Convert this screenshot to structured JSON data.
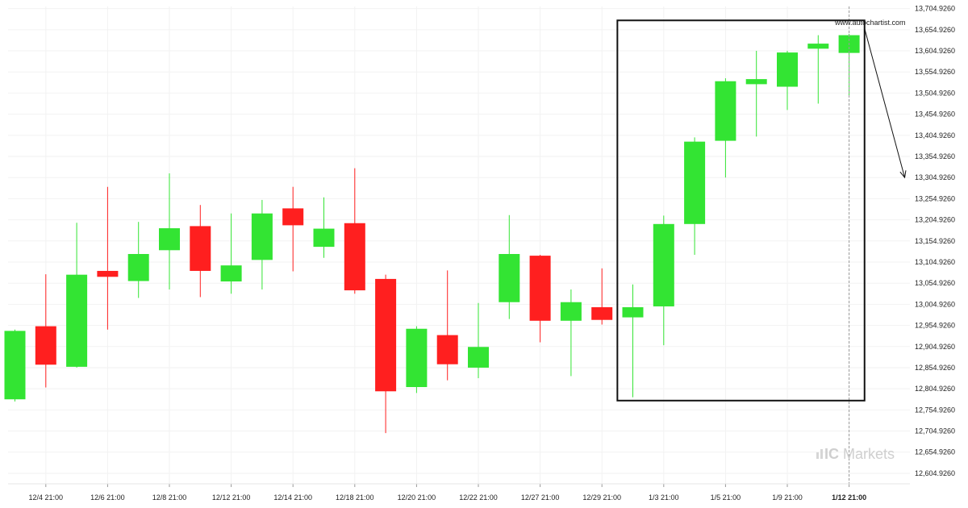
{
  "chart_data": {
    "type": "candlestick",
    "y_ticks": [
      "13,704.9260",
      "13,654.9260",
      "13,604.9260",
      "13,554.9260",
      "13,504.9260",
      "13,454.9260",
      "13,404.9260",
      "13,354.9260",
      "13,304.9260",
      "13,254.9260",
      "13,204.9260",
      "13,154.9260",
      "13,104.9260",
      "13,054.9260",
      "13,004.9260",
      "12,954.9260",
      "12,904.9260",
      "12,854.9260",
      "12,804.9260",
      "12,754.9260",
      "12,704.9260",
      "12,654.9260",
      "12,604.9260"
    ],
    "x_ticks": [
      {
        "label": "12/4 21:00",
        "index": 1
      },
      {
        "label": "12/6 21:00",
        "index": 3
      },
      {
        "label": "12/8 21:00",
        "index": 5
      },
      {
        "label": "12/12 21:00",
        "index": 7
      },
      {
        "label": "12/14 21:00",
        "index": 9
      },
      {
        "label": "12/18 21:00",
        "index": 11
      },
      {
        "label": "12/20 21:00",
        "index": 13
      },
      {
        "label": "12/22 21:00",
        "index": 15
      },
      {
        "label": "12/27 21:00",
        "index": 17
      },
      {
        "label": "12/29 21:00",
        "index": 19
      },
      {
        "label": "1/3 21:00",
        "index": 21
      },
      {
        "label": "1/5 21:00",
        "index": 23
      },
      {
        "label": "1/9 21:00",
        "index": 25
      },
      {
        "label": "1/12 21:00",
        "index": 27,
        "bold": true
      }
    ],
    "ylim": [
      12580,
      13710
    ],
    "candles": [
      {
        "open": 12780,
        "high": 12945,
        "low": 12775,
        "close": 12942
      },
      {
        "open": 12953,
        "high": 13076,
        "low": 12808,
        "close": 12862
      },
      {
        "open": 12857,
        "high": 13198,
        "low": 12855,
        "close": 13075
      },
      {
        "open": 13084,
        "high": 13283,
        "low": 12945,
        "close": 13070
      },
      {
        "open": 13060,
        "high": 13200,
        "low": 13020,
        "close": 13124
      },
      {
        "open": 13133,
        "high": 13315,
        "low": 13040,
        "close": 13185
      },
      {
        "open": 13190,
        "high": 13240,
        "low": 13022,
        "close": 13084
      },
      {
        "open": 13059,
        "high": 13220,
        "low": 13030,
        "close": 13097
      },
      {
        "open": 13110,
        "high": 13252,
        "low": 13040,
        "close": 13220
      },
      {
        "open": 13232,
        "high": 13283,
        "low": 13083,
        "close": 13192
      },
      {
        "open": 13141,
        "high": 13258,
        "low": 13115,
        "close": 13184
      },
      {
        "open": 13197,
        "high": 13327,
        "low": 13030,
        "close": 13038
      },
      {
        "open": 13065,
        "high": 13075,
        "low": 12700,
        "close": 12799
      },
      {
        "open": 12809,
        "high": 12953,
        "low": 12795,
        "close": 12947
      },
      {
        "open": 12932,
        "high": 13085,
        "low": 12825,
        "close": 12863
      },
      {
        "open": 12855,
        "high": 13008,
        "low": 12830,
        "close": 12904
      },
      {
        "open": 13010,
        "high": 13216,
        "low": 12970,
        "close": 13124
      },
      {
        "open": 13120,
        "high": 13122,
        "low": 12915,
        "close": 12966
      },
      {
        "open": 12966,
        "high": 13040,
        "low": 12835,
        "close": 13010
      },
      {
        "open": 12998,
        "high": 13090,
        "low": 12957,
        "close": 12968
      },
      {
        "open": 12974,
        "high": 13052,
        "low": 12785,
        "close": 12998
      },
      {
        "open": 13000,
        "high": 13215,
        "low": 12908,
        "close": 13195
      },
      {
        "open": 13195,
        "high": 13400,
        "low": 13122,
        "close": 13390
      },
      {
        "open": 13392,
        "high": 13540,
        "low": 13305,
        "close": 13533
      },
      {
        "open": 13526,
        "high": 13605,
        "low": 13402,
        "close": 13538
      },
      {
        "open": 13520,
        "high": 13605,
        "low": 13465,
        "close": 13601
      },
      {
        "open": 13610,
        "high": 13642,
        "low": 13480,
        "close": 13622
      },
      {
        "open": 13600,
        "high": 13645,
        "low": 13500,
        "close": 13642
      }
    ],
    "pattern_box": {
      "x_start_index": 19.5,
      "x_end_index": 27.5,
      "y_low": 12777,
      "y_high": 13677
    },
    "forecast_arrow": {
      "from_index": 27.5,
      "from_value": 13658,
      "to_index": 28.8,
      "to_value": 13305
    },
    "current_index": 27,
    "up_color": "#33e433",
    "down_color": "#ff1f1f"
  },
  "watermark": {
    "text": "www.autochartist.com"
  },
  "brand": {
    "ic": "IC",
    "markets": "Markets"
  }
}
